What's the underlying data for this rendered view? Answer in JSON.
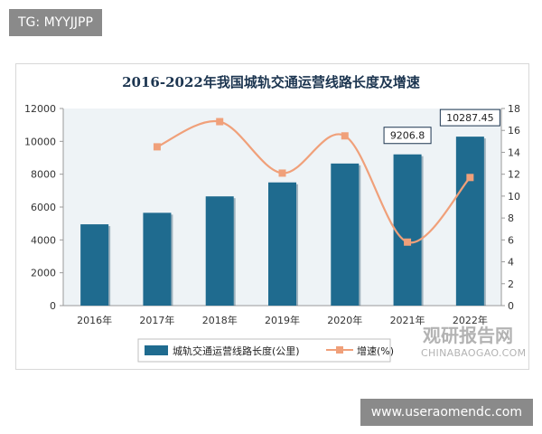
{
  "tags": {
    "top": "TG: MYYJJPP",
    "bottom": "www.useraomendc.com"
  },
  "watermark": {
    "cn": "观研报告网",
    "en": "CHINABAOGAO.COM"
  },
  "chart_data": {
    "type": "bar",
    "title": "2016-2022年我国城轨交通运营线路长度及增速",
    "categories": [
      "2016年",
      "2017年",
      "2018年",
      "2019年",
      "2020年",
      "2021年",
      "2022年"
    ],
    "series": [
      {
        "name": "城轨交通运营线路长度(公里)",
        "type": "bar",
        "axis": "left",
        "values": [
          4950,
          5650,
          6650,
          7500,
          8650,
          9206.8,
          10287.45
        ]
      },
      {
        "name": "增速(%)",
        "type": "line",
        "axis": "right",
        "values": [
          null,
          14.5,
          16.8,
          12.1,
          15.5,
          5.8,
          11.7
        ]
      }
    ],
    "callouts": [
      {
        "index": 5,
        "text": "9206.8"
      },
      {
        "index": 6,
        "text": "10287.45"
      }
    ],
    "ylim_left": [
      0,
      12000
    ],
    "yticks_left": [
      0,
      2000,
      4000,
      6000,
      8000,
      10000,
      12000
    ],
    "ylim_right": [
      0,
      18
    ],
    "yticks_right": [
      0,
      2,
      4,
      6,
      8,
      10,
      12,
      14,
      16,
      18
    ],
    "grid": false,
    "legend": "bottom",
    "colors": {
      "bar": "#1f6b8f",
      "line": "#f0a07a",
      "plot_bg": "#eef3f6",
      "title": "#1c3550"
    }
  }
}
